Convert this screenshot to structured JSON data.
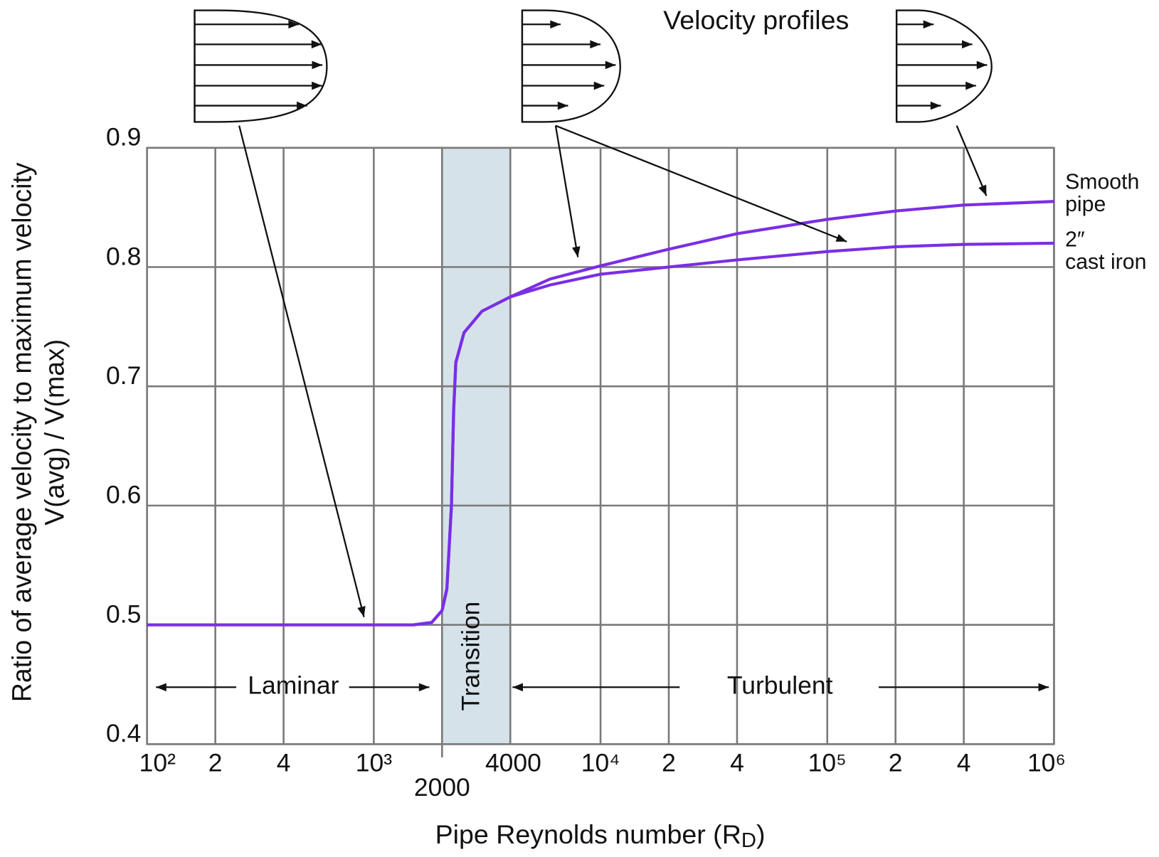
{
  "chart_data": {
    "type": "line",
    "title": "Velocity profiles",
    "xlabel_parts": [
      "Pipe Reynolds number (R",
      "D",
      ")"
    ],
    "ylabel_lines": [
      "Ratio of average velocity to maximum velocity",
      "V(avg) / V(max)"
    ],
    "xscale": "log",
    "xlim": [
      100,
      1000000
    ],
    "ylim": [
      0.4,
      0.9
    ],
    "xticks": [
      {
        "value": 100,
        "label": "10²"
      },
      {
        "value": 200,
        "label": "2"
      },
      {
        "value": 400,
        "label": "4"
      },
      {
        "value": 1000,
        "label": "10³"
      },
      2000,
      4000,
      {
        "value": 10000,
        "label": "10⁴"
      },
      {
        "value": 20000,
        "label": "2"
      },
      {
        "value": 40000,
        "label": "4"
      },
      {
        "value": 100000,
        "label": "10⁵"
      },
      {
        "value": 200000,
        "label": "2"
      },
      {
        "value": 400000,
        "label": "4"
      },
      {
        "value": 1000000,
        "label": "10⁶"
      }
    ],
    "yticks": [
      0.4,
      0.5,
      0.6,
      0.7,
      0.8,
      0.9
    ],
    "grid": true,
    "transition_band": [
      2000,
      4000
    ],
    "band_color": "#d6e2e9",
    "regions": {
      "laminar": "Laminar",
      "transition": "Transition",
      "turbulent": "Turbulent"
    },
    "x": [
      100,
      500,
      1000,
      1500,
      1800,
      2000,
      2100,
      2200,
      2250,
      2300,
      2500,
      3000,
      4000,
      6000,
      10000,
      20000,
      40000,
      100000,
      200000,
      400000,
      1000000
    ],
    "series": [
      {
        "name": "Smooth pipe",
        "color": "#7a2ee6",
        "values": [
          0.5,
          0.5,
          0.5,
          0.5,
          0.502,
          0.512,
          0.53,
          0.6,
          0.68,
          0.72,
          0.745,
          0.763,
          0.775,
          0.79,
          0.801,
          0.815,
          0.828,
          0.84,
          0.847,
          0.852,
          0.855
        ]
      },
      {
        "name": "2″ cast iron",
        "color": "#7a2ee6",
        "values": [
          0.5,
          0.5,
          0.5,
          0.5,
          0.502,
          0.512,
          0.53,
          0.6,
          0.68,
          0.72,
          0.745,
          0.763,
          0.775,
          0.785,
          0.794,
          0.8,
          0.806,
          0.813,
          0.817,
          0.819,
          0.82
        ]
      }
    ]
  }
}
